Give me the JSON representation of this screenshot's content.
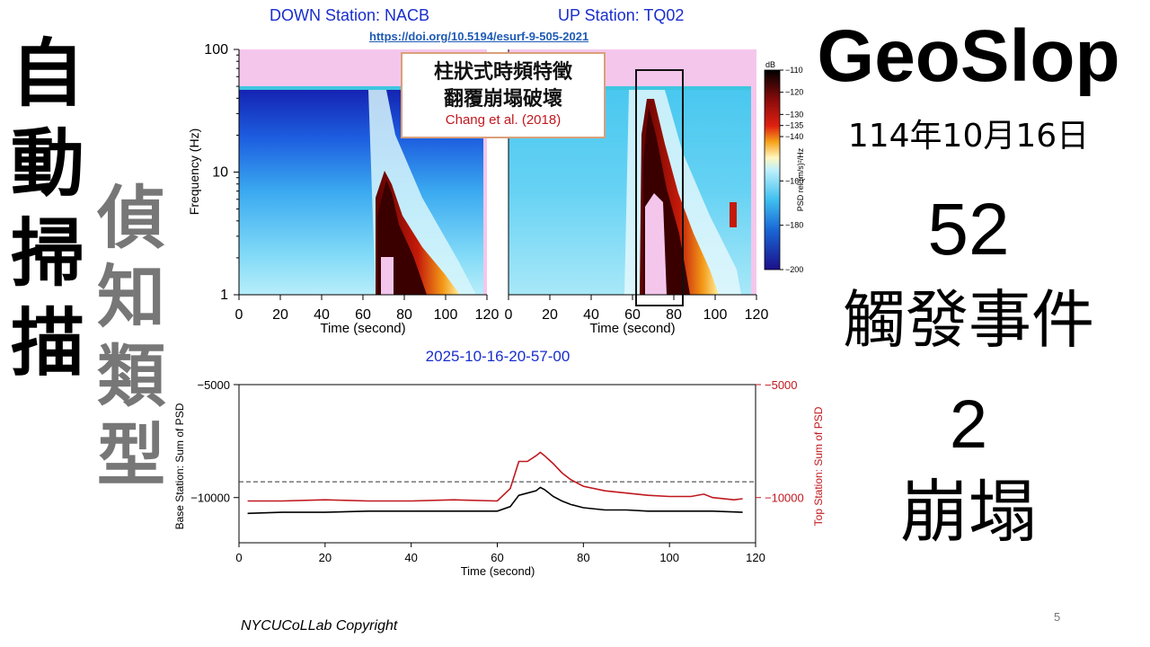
{
  "left_title": {
    "column1": [
      "自",
      "動",
      "掃",
      "描"
    ],
    "column2": [
      "偵",
      "知",
      "類",
      "型"
    ]
  },
  "header": {
    "down_station": "DOWN Station: NACB",
    "up_station": "UP Station: TQ02",
    "doi": "https://doi.org/10.5194/esurf-9-505-2021"
  },
  "overlay": {
    "line1": "柱狀式時頻特徵",
    "line2": "翻覆崩塌破壞",
    "citation": "Chang et al. (2018)"
  },
  "right_panel": {
    "brand": "GeoSlop",
    "date": "114年10月16日",
    "count": "52",
    "count_label": "觸發事件",
    "type_count": "2",
    "type_label": "崩塌"
  },
  "colors": {
    "station_blue": "#1a2ecc",
    "doi_blue": "#1f5bb5",
    "citation_red": "#c0181f",
    "top_series_red": "#c0181f",
    "base_series_black": "#000000",
    "spectrogram_pink": "#f4c6ec"
  },
  "chart_data": [
    {
      "type": "heatmap",
      "panel": "spectrogram-down",
      "ylabel": "Frequency (Hz)",
      "xlabel": "Time (second)",
      "x_ticks": [
        0,
        20,
        40,
        60,
        80,
        100,
        120
      ],
      "y_ticks": [
        "1",
        "10",
        "100"
      ],
      "xlim": [
        0,
        120
      ],
      "ylim": [
        1,
        100
      ],
      "y_scale": "log",
      "event_onset_s": 66,
      "event_peak_s": 70
    },
    {
      "type": "heatmap",
      "panel": "spectrogram-up",
      "xlabel": "Time (second)",
      "x_ticks": [
        0,
        20,
        40,
        60,
        80,
        100,
        120
      ],
      "xlim": [
        0,
        120
      ],
      "ylim": [
        1,
        100
      ],
      "y_scale": "log",
      "highlight_box_s": [
        62,
        83
      ],
      "colorbar": {
        "unit_label": "dB",
        "ticks": [
          "-110",
          "-120",
          "-130",
          "-135",
          "-140",
          "-160",
          "-180",
          "-200"
        ],
        "title": "PSD rel.(m/s)²/Hz"
      }
    },
    {
      "type": "line",
      "title": "2025-10-16-20-57-00",
      "xlabel": "Time (second)",
      "ylabel_left": "Base Station: Sum of PSD",
      "ylabel_right": "Top Station: Sum of PSD",
      "xlim": [
        0,
        120
      ],
      "ylim": [
        -12000,
        -5000
      ],
      "x_ticks": [
        0,
        20,
        40,
        60,
        80,
        100,
        120
      ],
      "y_ticks_left": [
        "-5000",
        "-10000"
      ],
      "y_ticks_right": [
        "-5000",
        "-10000"
      ],
      "threshold": -9300,
      "series": [
        {
          "name": "Top Station",
          "x": [
            2,
            10,
            20,
            30,
            40,
            50,
            60,
            63,
            65,
            67,
            69,
            70,
            71,
            73,
            75,
            77,
            80,
            85,
            90,
            95,
            100,
            105,
            108,
            110,
            115,
            117
          ],
          "values": [
            -10150,
            -10150,
            -10100,
            -10150,
            -10150,
            -10100,
            -10150,
            -9600,
            -8400,
            -8400,
            -8150,
            -8000,
            -8150,
            -8500,
            -8900,
            -9200,
            -9500,
            -9700,
            -9800,
            -9900,
            -9950,
            -9950,
            -9850,
            -10000,
            -10100,
            -10050
          ]
        },
        {
          "name": "Base Station",
          "x": [
            2,
            10,
            20,
            30,
            40,
            50,
            60,
            63,
            65,
            67,
            69,
            70,
            71,
            73,
            75,
            77,
            80,
            85,
            90,
            95,
            100,
            105,
            110,
            117
          ],
          "values": [
            -10700,
            -10650,
            -10650,
            -10600,
            -10600,
            -10600,
            -10600,
            -10400,
            -9900,
            -9800,
            -9700,
            -9550,
            -9650,
            -9950,
            -10150,
            -10300,
            -10450,
            -10550,
            -10550,
            -10600,
            -10600,
            -10600,
            -10600,
            -10650
          ]
        }
      ]
    }
  ],
  "footer": {
    "copyright": "NYCUCoLLab Copyright",
    "page_number": "5"
  }
}
